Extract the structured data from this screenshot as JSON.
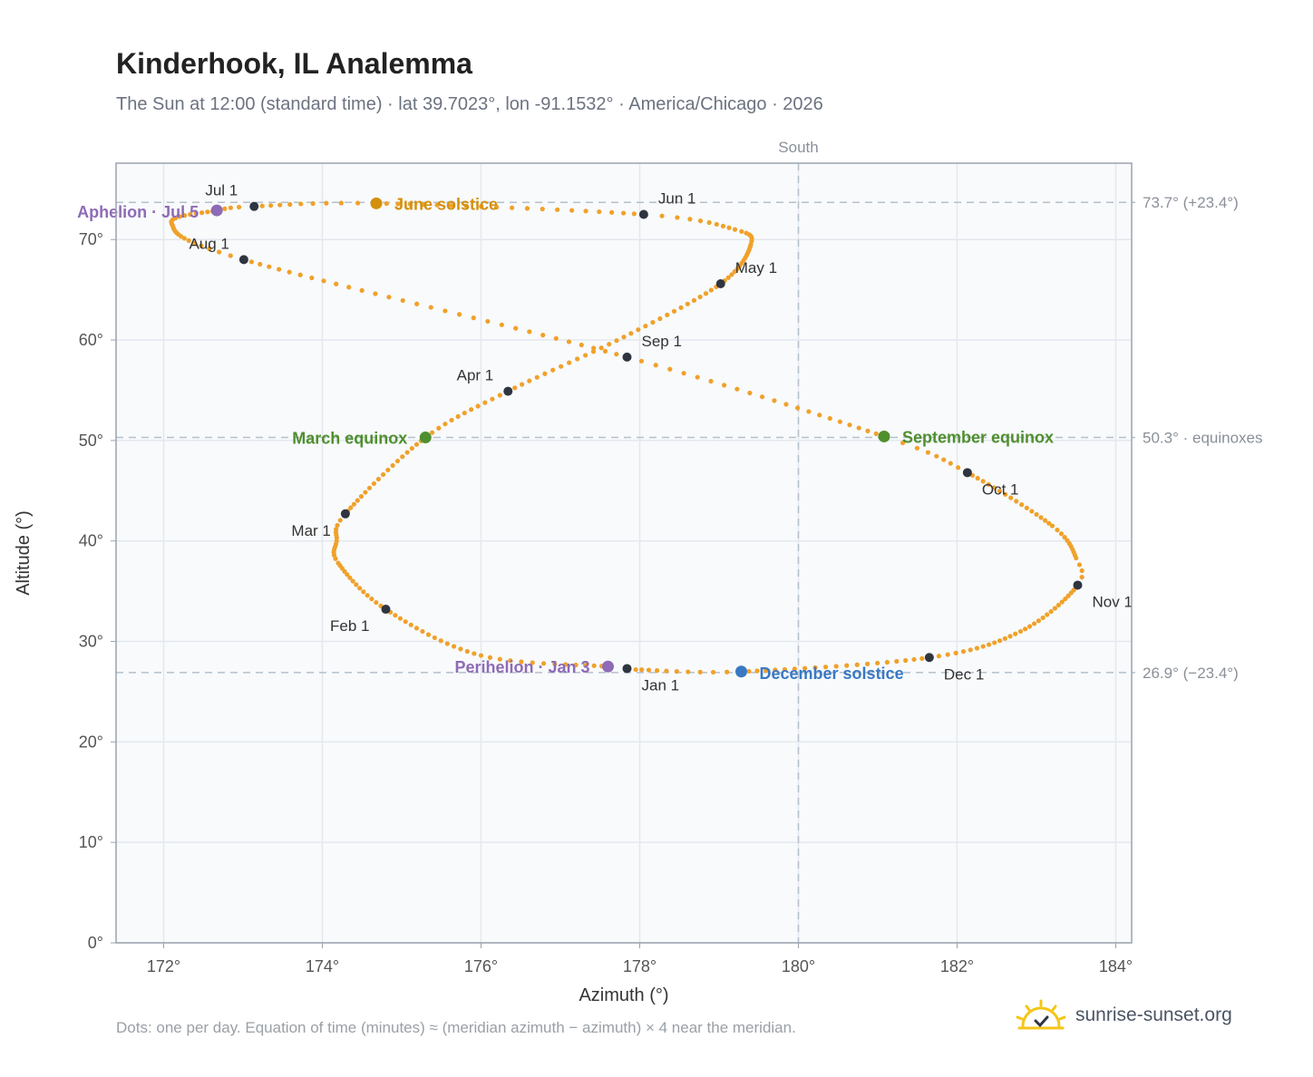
{
  "header": {
    "title": "Kinderhook, IL Analemma",
    "subtitle": "The Sun at 12:00 (standard time) · lat 39.7023°, lon -91.1532° · America/Chicago · 2026"
  },
  "footer": {
    "note": "Dots: one per day. Equation of time (minutes) ≈ (meridian azimuth − azimuth) × 4 near the meridian.",
    "brand": "sunrise-sunset.org"
  },
  "chart_data": {
    "type": "scatter",
    "title": "Kinderhook, IL Analemma",
    "xlabel": "Azimuth (°)",
    "ylabel": "Altitude (°)",
    "xlim": [
      171.4,
      184.2
    ],
    "ylim": [
      0,
      77.6
    ],
    "xticks": [
      172,
      174,
      176,
      178,
      180,
      182,
      184
    ],
    "xtick_labels": [
      "172°",
      "174°",
      "176°",
      "178°",
      "180°",
      "182°",
      "184°"
    ],
    "yticks": [
      0,
      10,
      20,
      30,
      40,
      50,
      60,
      70
    ],
    "ytick_labels": [
      "0°",
      "10°",
      "20°",
      "30°",
      "40°",
      "50°",
      "60°",
      "70°"
    ],
    "grid": true,
    "vertical_reference": {
      "x": 180,
      "label": "South"
    },
    "horizontal_references": [
      {
        "y": 73.7,
        "label": "73.7° (+23.4°)"
      },
      {
        "y": 50.3,
        "label": "50.3° · equinoxes"
      },
      {
        "y": 26.9,
        "label": "26.9° (−23.4°)"
      }
    ],
    "series": [
      {
        "points_per_day": true,
        "anchors": [
          {
            "day": 0,
            "x": 177.84,
            "y": 27.3
          },
          {
            "day": 2,
            "x": 177.6,
            "y": 27.5
          },
          {
            "day": 15,
            "x": 176.0,
            "y": 28.6
          },
          {
            "day": 31,
            "x": 174.8,
            "y": 33.2
          },
          {
            "day": 45,
            "x": 174.2,
            "y": 37.8
          },
          {
            "day": 52,
            "x": 174.18,
            "y": 40.0
          },
          {
            "day": 59,
            "x": 174.29,
            "y": 42.7
          },
          {
            "day": 78,
            "x": 175.3,
            "y": 50.3
          },
          {
            "day": 90,
            "x": 176.34,
            "y": 54.9
          },
          {
            "day": 105,
            "x": 177.8,
            "y": 60.3
          },
          {
            "day": 120,
            "x": 179.02,
            "y": 65.6
          },
          {
            "day": 135,
            "x": 179.4,
            "y": 69.5
          },
          {
            "day": 142,
            "x": 179.2,
            "y": 71.0
          },
          {
            "day": 151,
            "x": 178.05,
            "y": 72.5
          },
          {
            "day": 171,
            "x": 174.68,
            "y": 73.6
          },
          {
            "day": 181,
            "x": 173.14,
            "y": 73.3
          },
          {
            "day": 185,
            "x": 172.67,
            "y": 72.9
          },
          {
            "day": 196,
            "x": 172.1,
            "y": 71.6
          },
          {
            "day": 212,
            "x": 173.01,
            "y": 68.0
          },
          {
            "day": 243,
            "x": 177.84,
            "y": 58.3
          },
          {
            "day": 265,
            "x": 181.08,
            "y": 50.4
          },
          {
            "day": 273,
            "x": 182.13,
            "y": 46.8
          },
          {
            "day": 290,
            "x": 183.2,
            "y": 41.5
          },
          {
            "day": 300,
            "x": 183.5,
            "y": 38.3
          },
          {
            "day": 304,
            "x": 183.52,
            "y": 35.6
          },
          {
            "day": 320,
            "x": 182.8,
            "y": 31.0
          },
          {
            "day": 334,
            "x": 181.65,
            "y": 28.4
          },
          {
            "day": 354,
            "x": 179.28,
            "y": 27.0
          },
          {
            "day": 364,
            "x": 177.95,
            "y": 27.2
          }
        ]
      }
    ],
    "month_markers": [
      {
        "label": "Jan 1",
        "x": 177.84,
        "y": 27.3
      },
      {
        "label": "Feb 1",
        "x": 174.8,
        "y": 33.2
      },
      {
        "label": "Mar 1",
        "x": 174.29,
        "y": 42.7
      },
      {
        "label": "Apr 1",
        "x": 176.34,
        "y": 54.9
      },
      {
        "label": "May 1",
        "x": 179.02,
        "y": 65.6
      },
      {
        "label": "Jun 1",
        "x": 178.05,
        "y": 72.5
      },
      {
        "label": "Jul 1",
        "x": 173.14,
        "y": 73.3
      },
      {
        "label": "Aug 1",
        "x": 173.01,
        "y": 68.0
      },
      {
        "label": "Sep 1",
        "x": 177.84,
        "y": 58.3
      },
      {
        "label": "Oct 1",
        "x": 182.13,
        "y": 46.8
      },
      {
        "label": "Nov 1",
        "x": 183.52,
        "y": 35.6
      },
      {
        "label": "Dec 1",
        "x": 181.65,
        "y": 28.4
      }
    ],
    "events": [
      {
        "label": "June solstice",
        "x": 174.68,
        "y": 73.6,
        "color": "#d4900a"
      },
      {
        "label": "Aphelion · Jul 5",
        "x": 172.67,
        "y": 72.9,
        "color": "#8e6bb5"
      },
      {
        "label": "March equinox",
        "x": 175.3,
        "y": 50.3,
        "color": "#4f8f2e"
      },
      {
        "label": "September equinox",
        "x": 181.08,
        "y": 50.4,
        "color": "#4f8f2e"
      },
      {
        "label": "Perihelion · Jan 3",
        "x": 177.6,
        "y": 27.5,
        "color": "#8e6bb5"
      },
      {
        "label": "December solstice",
        "x": 179.28,
        "y": 27.0,
        "color": "#3a78c3"
      }
    ],
    "colors": {
      "curve": "#f0a12a",
      "month_marker": "#2f3540",
      "plot_background": "#f8fafc",
      "grid": "#e4e8ee",
      "reference_line": "#b4c0cc"
    }
  }
}
